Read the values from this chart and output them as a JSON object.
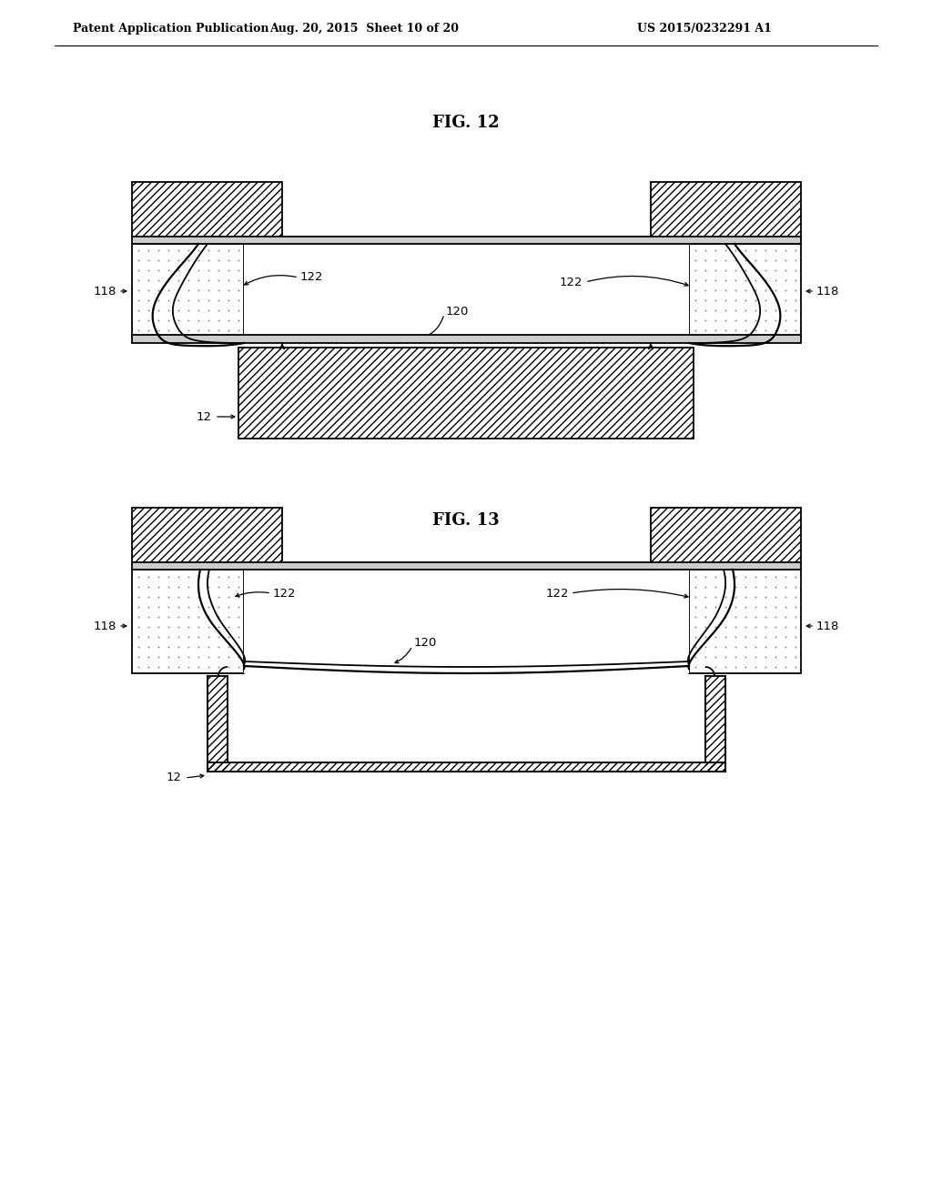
{
  "title_left": "Patent Application Publication",
  "title_mid": "Aug. 20, 2015  Sheet 10 of 20",
  "title_right": "US 2015/0232291 A1",
  "fig12_label": "FIG. 12",
  "fig13_label": "FIG. 13",
  "bg_color": "#ffffff",
  "line_color": "#000000",
  "label_fontsize": 9.5,
  "header_fontsize": 9,
  "figlabel_fontsize": 13
}
